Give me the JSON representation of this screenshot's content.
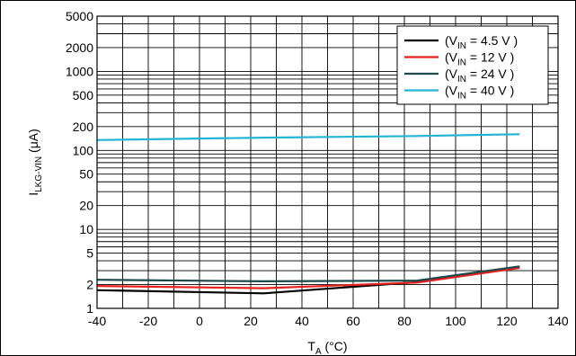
{
  "chart_data": {
    "type": "line",
    "y_scale": "log",
    "grid": true,
    "legend_position": "top-right",
    "xlim": [
      -40,
      140
    ],
    "ylim": [
      1,
      5000
    ],
    "x_ticks": [
      -40,
      -20,
      0,
      20,
      40,
      60,
      80,
      100,
      120,
      140
    ],
    "y_ticks": [
      1,
      2,
      5,
      10,
      20,
      50,
      100,
      200,
      500,
      1000,
      2000,
      5000
    ],
    "xlabel": {
      "main": "T",
      "sub": "A",
      "unit": " (°C)"
    },
    "ylabel": {
      "main": "I",
      "sub": "LKG-VIN",
      "unit": " (μA)"
    },
    "series": [
      {
        "name": "(VIN = 4.5 V )",
        "name_parts": [
          "(V",
          "IN",
          " = 4.5 V )"
        ],
        "color": "#000000",
        "x": [
          -40,
          25,
          85,
          125
        ],
        "y": [
          1.7,
          1.55,
          2.15,
          3.3
        ]
      },
      {
        "name": "(VIN = 12 V )",
        "name_parts": [
          "(V",
          "IN",
          " = 12 V )"
        ],
        "color": "#e8211c",
        "x": [
          -40,
          25,
          85,
          125
        ],
        "y": [
          1.92,
          1.8,
          2.12,
          3.25
        ]
      },
      {
        "name": "(VIN = 24 V )",
        "name_parts": [
          "(V",
          "IN",
          " = 24 V )"
        ],
        "color": "#1d4a4c",
        "x": [
          -40,
          25,
          85,
          125
        ],
        "y": [
          2.3,
          2.2,
          2.25,
          3.4
        ]
      },
      {
        "name": "(VIN = 40 V )",
        "name_parts": [
          "(V",
          "IN",
          " = 40 V )"
        ],
        "color": "#24b5d6",
        "x": [
          -40,
          25,
          85,
          125
        ],
        "y": [
          135,
          145,
          152,
          160
        ]
      }
    ]
  }
}
